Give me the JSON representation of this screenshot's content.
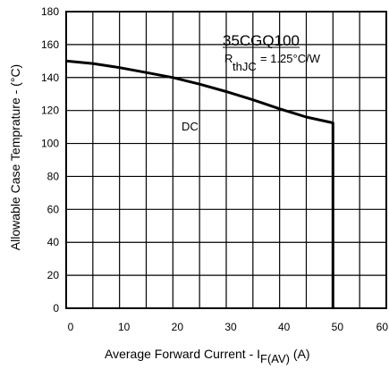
{
  "chart_data": {
    "type": "line",
    "xlabel": {
      "main": "Average Forward Current  - I",
      "sub": "F(AV)",
      "unit": " (A)"
    },
    "ylabel": "Allowable Case Temprature - (°C)",
    "xlim": [
      0,
      60
    ],
    "ylim": [
      0,
      180
    ],
    "x_ticks": [
      0,
      10,
      20,
      30,
      40,
      50,
      60
    ],
    "y_ticks": [
      0,
      20,
      40,
      60,
      80,
      100,
      120,
      140,
      160,
      180
    ],
    "x_tick_labels": [
      "0",
      "10",
      "20",
      "30",
      "40",
      "50",
      "60"
    ],
    "y_tick_labels": [
      "0",
      "20",
      "40",
      "60",
      "80",
      "100",
      "120",
      "140",
      "160",
      "180"
    ],
    "grid": true,
    "series": [
      {
        "name": "DC",
        "x": [
          0,
          5,
          10,
          15,
          20,
          25,
          30,
          35,
          40,
          45,
          50,
          50
        ],
        "y": [
          150,
          148.5,
          146,
          143,
          140,
          136,
          131.5,
          126.5,
          121,
          116,
          112.5,
          0
        ]
      }
    ],
    "annotations": {
      "part": "35CGQ100",
      "rth_symbol": "R",
      "rth_sub": "thJC",
      "rth_value": " =  1.25°C/W",
      "series_label": "DC"
    }
  }
}
